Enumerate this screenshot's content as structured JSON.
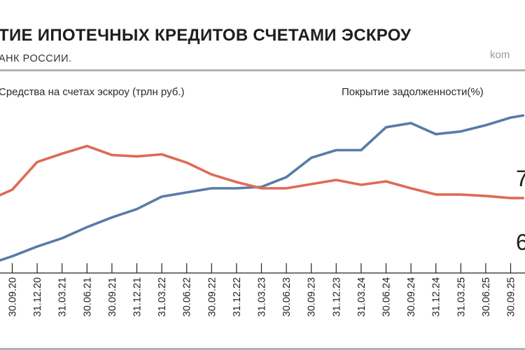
{
  "header": {
    "title": "ТИЕ ИПОТЕЧНЫХ КРЕДИТОВ СЧЕТАМИ ЭСКРОУ",
    "source": "АНК РОССИИ.",
    "brand": "kom"
  },
  "chart_data": {
    "type": "line",
    "x": [
      "30.09.20",
      "31.12.20",
      "31.03.21",
      "30.06.21",
      "30.09.21",
      "31.12.21",
      "31.03.22",
      "30.06.22",
      "30.09.22",
      "31.12.22",
      "31.03.23",
      "30.06.23",
      "30.09.23",
      "31.12.23",
      "31.03.24",
      "30.06.24",
      "30.09.24",
      "31.12.24",
      "31.03.25",
      "30.06.25",
      "30.09.25"
    ],
    "series": [
      {
        "name": "Средства на счетах эскроу (трлн руб.)",
        "color": "#587ba8",
        "axis_label": "",
        "points": [
          [
            -0.5,
            1.8
          ],
          [
            0,
            2.1
          ],
          [
            1,
            2.8
          ],
          [
            2,
            3.4
          ],
          [
            3,
            4.2
          ],
          [
            4,
            4.9
          ],
          [
            5,
            5.5
          ],
          [
            6,
            6.4
          ],
          [
            7,
            6.7
          ],
          [
            8,
            7.0
          ],
          [
            9,
            7.0
          ],
          [
            10,
            7.1
          ],
          [
            11,
            7.8
          ],
          [
            12,
            9.2
          ],
          [
            13,
            9.75
          ],
          [
            14,
            9.75
          ],
          [
            15,
            11.4
          ],
          [
            16,
            11.7
          ],
          [
            17,
            10.9
          ],
          [
            18,
            11.1
          ],
          [
            19,
            11.55
          ],
          [
            20,
            12.1
          ],
          [
            20.5,
            12.25
          ]
        ]
      },
      {
        "name": "Покрытие задолженности(%)",
        "color": "#e06a55",
        "axis_label": "",
        "points": [
          [
            -0.5,
            6.5
          ],
          [
            0,
            6.9
          ],
          [
            1,
            8.9
          ],
          [
            2,
            9.5
          ],
          [
            3,
            10.05
          ],
          [
            4,
            9.4
          ],
          [
            5,
            9.3
          ],
          [
            6,
            9.45
          ],
          [
            7,
            8.85
          ],
          [
            8,
            8.0
          ],
          [
            9,
            7.45
          ],
          [
            10,
            7.0
          ],
          [
            11,
            7.0
          ],
          [
            12,
            7.3
          ],
          [
            13,
            7.6
          ],
          [
            14,
            7.25
          ],
          [
            15,
            7.5
          ],
          [
            16,
            7.0
          ],
          [
            17,
            6.55
          ],
          [
            18,
            6.55
          ],
          [
            19,
            6.45
          ],
          [
            20,
            6.3
          ],
          [
            20.5,
            6.3
          ]
        ]
      }
    ],
    "right_labels": [
      "7",
      "6"
    ],
    "legend": [
      "Средства на счетах эскроу (трлн руб.)",
      "Покрытие задолженности(%)"
    ],
    "grid": false,
    "colors": {
      "blue": "#587ba8",
      "red": "#e06a55",
      "axis": "#222222",
      "rule": "#b3b3b3"
    }
  }
}
